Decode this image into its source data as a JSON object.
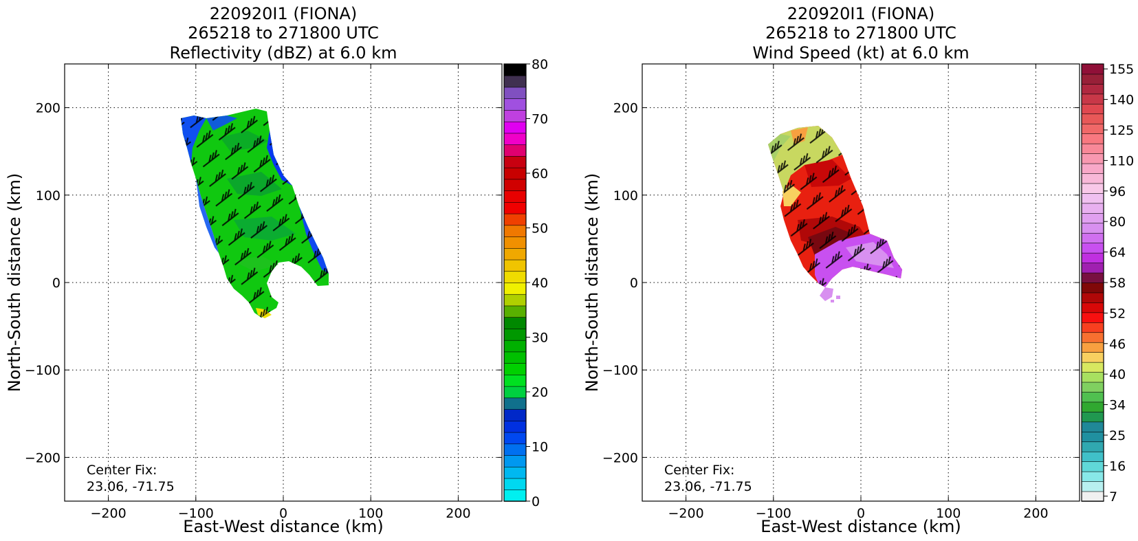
{
  "chart_data": [
    {
      "type": "heatmap",
      "title_lines": [
        "220920I1 (FIONA)",
        "265218 to 271800 UTC",
        "Reflectivity (dBZ) at 6.0 km"
      ],
      "xlabel": "East-West distance (km)",
      "ylabel": "North-South distance (km)",
      "xlim": [
        -250,
        250
      ],
      "ylim": [
        -250,
        250
      ],
      "xticks": [
        -200,
        -100,
        0,
        100,
        200
      ],
      "yticks": [
        -200,
        -100,
        0,
        100,
        200
      ],
      "grid": true,
      "annotation_lines": [
        "Center Fix:",
        "23.06, -71.75"
      ],
      "colorbar": {
        "range": [
          0,
          80
        ],
        "tick_values": [
          0,
          10,
          20,
          30,
          40,
          50,
          60,
          70,
          80
        ],
        "tick_labels": [
          "0",
          "10",
          "20",
          "30",
          "40",
          "50",
          "60",
          "70",
          "80"
        ],
        "colors": [
          "#00f0f0",
          "#00d8f0",
          "#00b8f0",
          "#0098f0",
          "#0070f0",
          "#0048f0",
          "#0030e0",
          "#0028c8",
          "#10708c",
          "#00d040",
          "#00e020",
          "#00d000",
          "#00c000",
          "#00b000",
          "#009800",
          "#008800",
          "#58b000",
          "#b0d000",
          "#f0f000",
          "#f0dc00",
          "#f0c400",
          "#f0a800",
          "#f09000",
          "#f07800",
          "#f04000",
          "#f00000",
          "#e80000",
          "#d00000",
          "#c80000",
          "#c80010",
          "#e00070",
          "#f000c8",
          "#e000f0",
          "#c040e0",
          "#a050e0",
          "#8050c0",
          "#403050",
          "#000000"
        ]
      },
      "data_description_regions": "storm echo region roughly x -115..50 km, y -35..195 km"
    },
    {
      "type": "heatmap",
      "title_lines": [
        "220920I1 (FIONA)",
        "265218 to 271800 UTC",
        "Wind Speed (kt) at 6.0 km"
      ],
      "xlabel": "East-West distance (km)",
      "ylabel": "North-South distance (km)",
      "xlim": [
        -250,
        250
      ],
      "ylim": [
        -250,
        250
      ],
      "xticks": [
        -200,
        -100,
        0,
        100,
        200
      ],
      "yticks": [
        -200,
        -100,
        0,
        100,
        200
      ],
      "grid": true,
      "annotation_lines": [
        "Center Fix:",
        "23.06, -71.75"
      ],
      "colorbar": {
        "tick_labels": [
          "7",
          "16",
          "25",
          "34",
          "40",
          "46",
          "52",
          "58",
          "64",
          "80",
          "96",
          "110",
          "125",
          "140",
          "155"
        ],
        "colors": [
          "#f0f0f0",
          "#b8f0f0",
          "#88e8e8",
          "#60d8d8",
          "#40c0c8",
          "#30a8b0",
          "#2090a0",
          "#208898",
          "#209850",
          "#30a830",
          "#50c050",
          "#80d060",
          "#a8e060",
          "#d8e860",
          "#f8d060",
          "#f8a040",
          "#f87030",
          "#f84020",
          "#f81010",
          "#d80808",
          "#b00808",
          "#800808",
          "#781040",
          "#a020b0",
          "#c030e0",
          "#c850f0",
          "#d070f0",
          "#d890f0",
          "#e0a0f0",
          "#e8b0f0",
          "#f0c0f0",
          "#f8c8e8",
          "#f8b8d8",
          "#f8a8c8",
          "#f898b0",
          "#f88898",
          "#f87880",
          "#f06868",
          "#e85858",
          "#e04850",
          "#c83848",
          "#b02840",
          "#982038",
          "#901038"
        ]
      }
    }
  ]
}
